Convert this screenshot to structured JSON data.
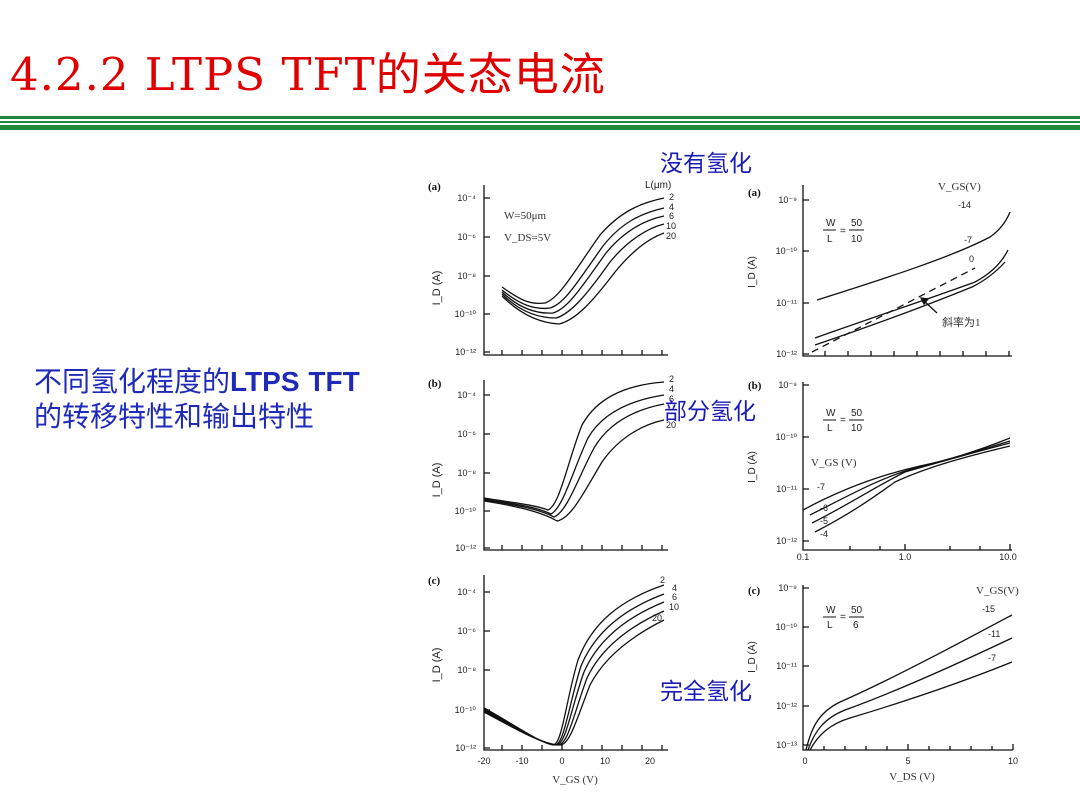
{
  "slide": {
    "title": "4.2.2 LTPS TFT的关态电流",
    "description_parts": [
      "不同氢化程度的",
      "LTPS",
      " ",
      "TFT",
      "的转移特性和输出特性"
    ]
  },
  "labels": {
    "none": "没有氢化",
    "partial": "部分氢化",
    "full": "完全氢化"
  },
  "colors": {
    "title": "#e00000",
    "rule": "#1f8a3c",
    "blue_text": "#1f2ab8"
  },
  "transfer": {
    "panel_letters": [
      "(a)",
      "(b)",
      "(c)"
    ],
    "y_ticks": [
      "10⁻⁴",
      "10⁻⁶",
      "10⁻⁸",
      "10⁻¹⁰",
      "10⁻¹²"
    ],
    "y_label": "I_D (A)",
    "x_ticks": [
      "-20",
      "-10",
      "0",
      "10",
      "20"
    ],
    "x_label": "V_GS (V)",
    "legend_title": "L(μm)",
    "length_labels_a": [
      "2",
      "4",
      "6",
      "10",
      "20"
    ],
    "length_labels_b": [
      "2",
      "4",
      "6",
      "20"
    ],
    "length_labels_c": [
      "2",
      "4",
      "6",
      "10",
      "20"
    ],
    "annot_w": "W=50μm",
    "annot_vds": "V_DS=5V"
  },
  "output": {
    "panel_letters": [
      "(a)",
      "(b)",
      "(c)"
    ],
    "y_label": "I_D (A)",
    "a": {
      "y_ticks": [
        "10⁻⁹",
        "10⁻¹⁰",
        "10⁻¹¹",
        "10⁻¹²"
      ],
      "wl_w": "50",
      "wl_l": "10",
      "vgs_title": "V_GS(V)",
      "vgs_values": [
        "-14",
        "-7",
        "0"
      ],
      "slope_note": "斜率为1"
    },
    "b": {
      "y_ticks": [
        "10⁻⁹",
        "10⁻¹⁰",
        "10⁻¹¹",
        "10⁻¹²"
      ],
      "wl_w": "50",
      "wl_l": "10",
      "vgs_title": "V_GS (V)",
      "vgs_values": [
        "-7",
        "-6",
        "-5",
        "-4"
      ],
      "x_ticks": [
        "0.1",
        "1.0",
        "10.0"
      ]
    },
    "c": {
      "y_ticks": [
        "10⁻⁹",
        "10⁻¹⁰",
        "10⁻¹¹",
        "10⁻¹²",
        "10⁻¹³"
      ],
      "wl_w": "50",
      "wl_l": "6",
      "vgs_title": "V_GS(V)",
      "vgs_values": [
        "-15",
        "-11",
        "-7"
      ],
      "x_ticks": [
        "0",
        "5",
        "10"
      ],
      "x_label": "V_DS (V)"
    }
  }
}
